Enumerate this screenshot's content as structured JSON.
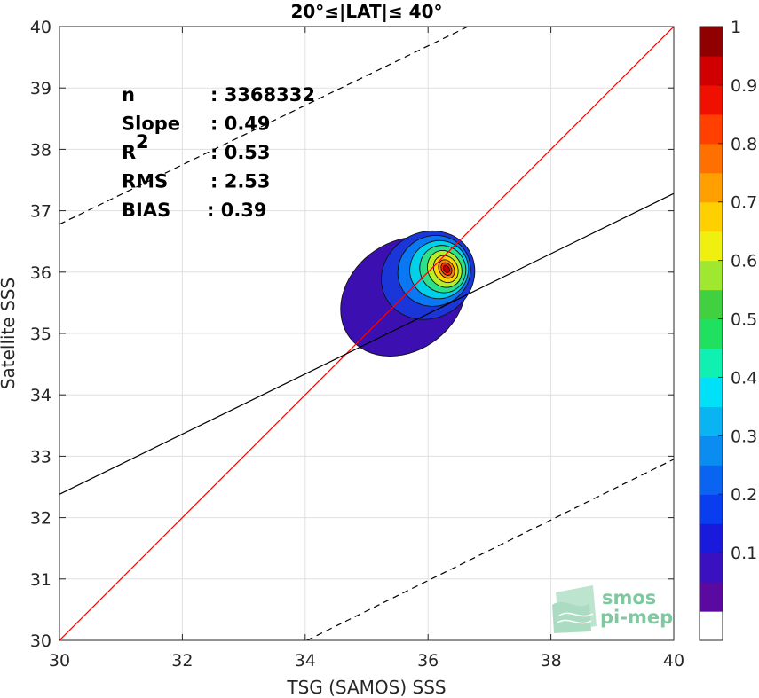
{
  "chart_data": {
    "type": "heatmap",
    "title": "20°≤|LAT|≤ 40°",
    "xlabel": "TSG (SAMOS) SSS",
    "ylabel": "Satellite SSS",
    "xlim": [
      30,
      40
    ],
    "ylim": [
      30,
      40
    ],
    "xticks": [
      30,
      32,
      34,
      36,
      38,
      40
    ],
    "yticks": [
      30,
      31,
      32,
      33,
      34,
      35,
      36,
      37,
      38,
      39,
      40
    ],
    "grid": true,
    "stats": [
      {
        "label": "n",
        "value": ": 3368332"
      },
      {
        "label": "Slope",
        "value": ": 0.49"
      },
      {
        "label": "R",
        "sup": "2",
        "value": ": 0.53"
      },
      {
        "label": "RMS",
        "value": ": 2.53"
      },
      {
        "label": "BIAS",
        "value": ": 0.39"
      }
    ],
    "lines": [
      {
        "name": "one-to-one",
        "style": "solid",
        "color": "#ff0000",
        "points": [
          [
            30,
            30
          ],
          [
            40,
            40
          ]
        ]
      },
      {
        "name": "regression fit",
        "style": "solid",
        "color": "#000000",
        "points": [
          [
            30,
            32.38
          ],
          [
            40,
            37.28
          ]
        ]
      },
      {
        "name": "upper bound",
        "style": "dashed",
        "color": "#000000",
        "points": [
          [
            30,
            36.78
          ],
          [
            36.65,
            40
          ]
        ]
      },
      {
        "name": "lower bound",
        "style": "dashed",
        "color": "#000000",
        "points": [
          [
            34.03,
            30
          ],
          [
            40,
            32.95
          ]
        ]
      }
    ],
    "density_center": [
      36.3,
      36.05
    ],
    "contour_levels": [
      {
        "level": 0.05,
        "color": "#3b0fb0",
        "rx": 1.1,
        "ry": 0.88,
        "cx": 35.6,
        "cy": 35.6
      },
      {
        "level": 0.15,
        "color": "#1a36d8",
        "rx": 0.78,
        "ry": 0.7,
        "cx": 36.0,
        "cy": 35.95
      },
      {
        "level": 0.25,
        "color": "#0a78f2",
        "rx": 0.6,
        "ry": 0.57,
        "cx": 36.1,
        "cy": 36.02
      },
      {
        "level": 0.35,
        "color": "#00d0e8",
        "rx": 0.48,
        "ry": 0.47,
        "cx": 36.18,
        "cy": 36.04
      },
      {
        "level": 0.45,
        "color": "#2fe08a",
        "rx": 0.37,
        "ry": 0.39,
        "cx": 36.24,
        "cy": 36.05
      },
      {
        "level": 0.55,
        "color": "#b6ee2a",
        "rx": 0.27,
        "ry": 0.31,
        "cx": 36.27,
        "cy": 36.05
      },
      {
        "level": 0.65,
        "color": "#ffd400",
        "rx": 0.19,
        "ry": 0.23,
        "cx": 36.29,
        "cy": 36.05
      },
      {
        "level": 0.75,
        "color": "#ff8800",
        "rx": 0.12,
        "ry": 0.16,
        "cx": 36.3,
        "cy": 36.05
      },
      {
        "level": 0.85,
        "color": "#ff2a00",
        "rx": 0.08,
        "ry": 0.11,
        "cx": 36.3,
        "cy": 36.05
      },
      {
        "level": 0.95,
        "color": "#c40000",
        "rx": 0.045,
        "ry": 0.065,
        "cx": 36.3,
        "cy": 36.05
      }
    ],
    "colorbar": {
      "ticks": [
        0.1,
        0.2,
        0.3,
        0.4,
        0.5,
        0.6,
        0.7,
        0.8,
        0.9,
        1
      ],
      "tick_labels": [
        "0.1",
        "0.2",
        "0.3",
        "0.4",
        "0.5",
        "0.6",
        "0.7",
        "0.8",
        "0.9",
        "1"
      ],
      "colors": [
        "#ffffff",
        "#5a0aa0",
        "#3a10c0",
        "#1a1adc",
        "#0a3cf0",
        "#0a64f2",
        "#0a8cf0",
        "#0ab4f2",
        "#00e0f8",
        "#10f0b0",
        "#20e060",
        "#40d040",
        "#a0e830",
        "#f0f010",
        "#ffd000",
        "#ffa000",
        "#ff7000",
        "#ff4000",
        "#f01000",
        "#d00000",
        "#900000"
      ]
    }
  },
  "logo": {
    "line1": "smos",
    "line2": "pi-mep"
  }
}
